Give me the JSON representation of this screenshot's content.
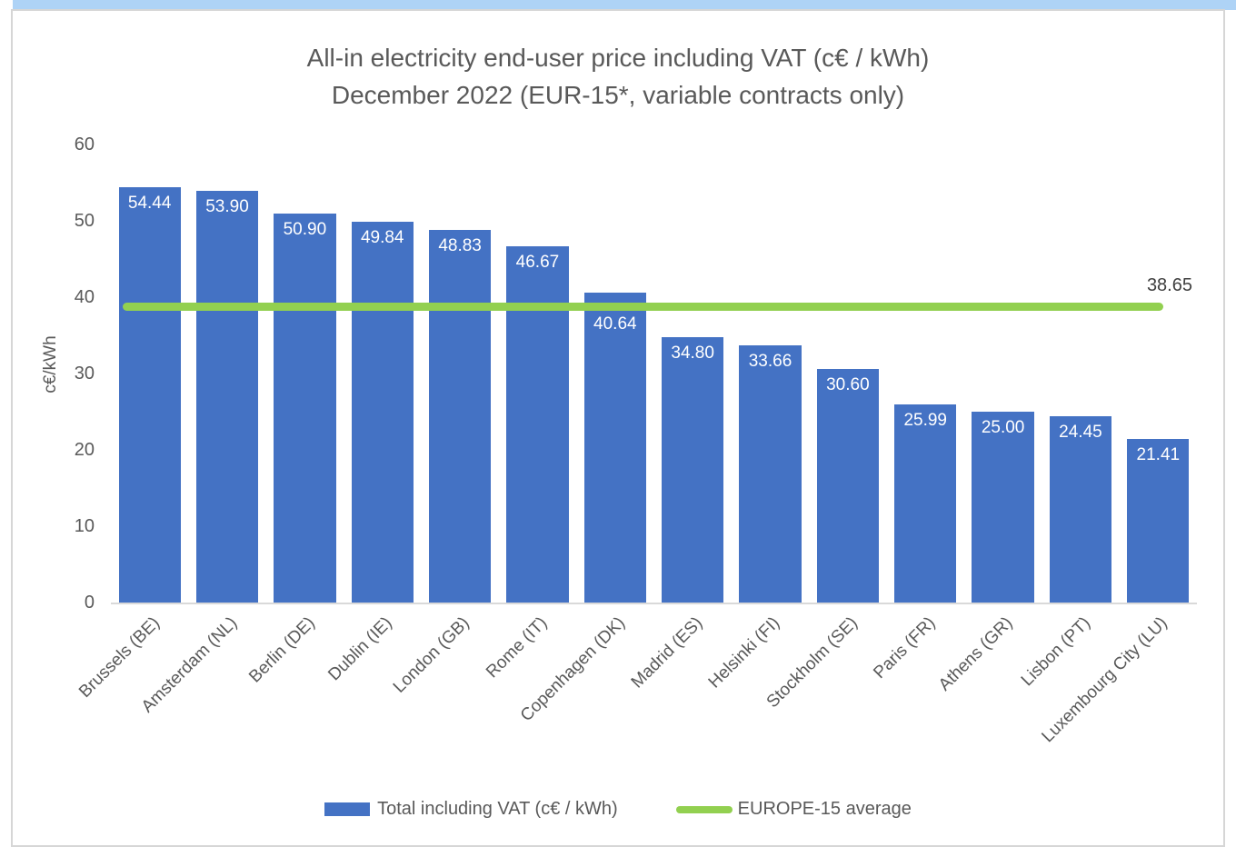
{
  "page": {
    "top_strip_color": "#aed3f6",
    "frame_border_color": "#d6d6d6",
    "background_color": "#ffffff",
    "text_color": "#595959"
  },
  "chart_data": {
    "type": "bar",
    "title_line1": "All-in electricity end-user price including VAT (c€ / kWh)",
    "title_line2": "December 2022 (EUR-15*, variable contracts only)",
    "ylabel": "c€/kWh",
    "xlabel": "",
    "ylim": [
      0,
      60
    ],
    "yticks": [
      0,
      10,
      20,
      30,
      40,
      50,
      60
    ],
    "grid": false,
    "legend_position": "bottom",
    "value_label_style": "inside-end, white, 2 decimals",
    "categories": [
      "Brussels (BE)",
      "Amsterdam (NL)",
      "Berlin (DE)",
      "Dublin (IE)",
      "London (GB)",
      "Rome (IT)",
      "Copenhagen (DK)",
      "Madrid (ES)",
      "Helsinki (FI)",
      "Stockholm (SE)",
      "Paris (FR)",
      "Athens (GR)",
      "Lisbon (PT)",
      "Luxembourg City (LU)"
    ],
    "series": [
      {
        "name": "Total including VAT (c€ / kWh)",
        "type": "bar",
        "color": "#4472C4",
        "value_label_color": "#ffffff",
        "values": [
          54.44,
          53.9,
          50.9,
          49.84,
          48.83,
          46.67,
          40.64,
          34.8,
          33.66,
          30.6,
          25.99,
          25.0,
          24.45,
          21.41
        ]
      }
    ],
    "average_line": {
      "name": "EUROPE-15 average",
      "value": 38.65,
      "label": "38.65",
      "color": "#92D050"
    }
  }
}
